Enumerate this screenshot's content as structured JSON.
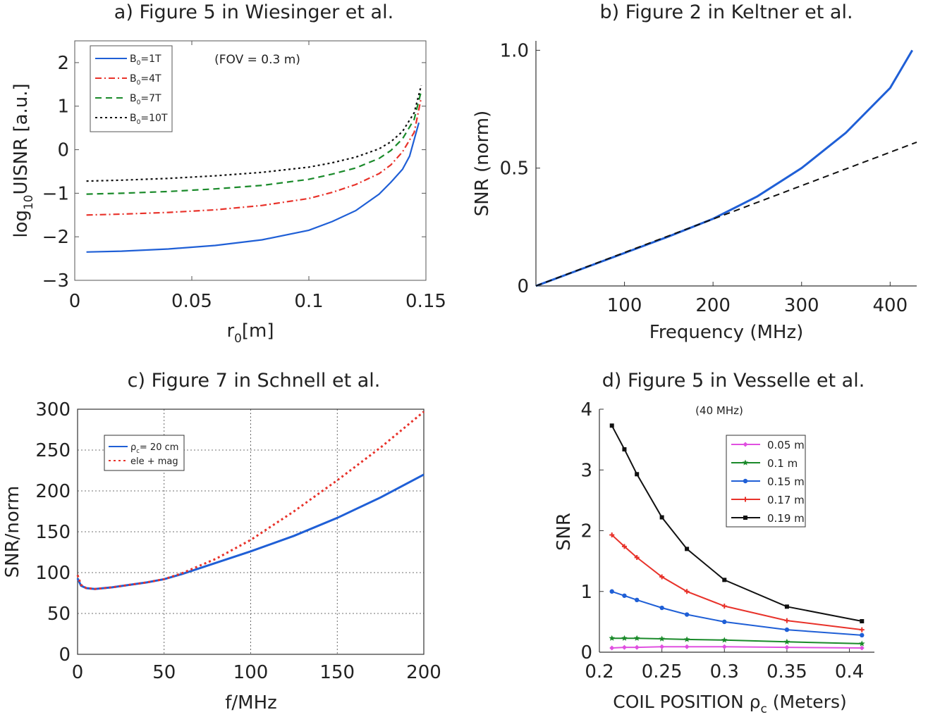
{
  "chart_data": [
    {
      "type": "line",
      "title": "a) Figure 5 in Wiesinger et al.",
      "xlabel": "r",
      "xlabel_sub": "0",
      "xlabel_suffix": "[m]",
      "ylabel": "log",
      "ylabel_sub": "10",
      "ylabel_suffix": "UISNR [a.u.]",
      "xlim": [
        0,
        0.15
      ],
      "ylim": [
        -3,
        2.5
      ],
      "xticks": [
        "0",
        "0.05",
        "0.1",
        "0.15"
      ],
      "xtick_values": [
        0,
        0.05,
        0.1,
        0.15
      ],
      "yticks": [
        "−3",
        "−2",
        "−1",
        "0",
        "1",
        "2"
      ],
      "ytick_values": [
        -3,
        -2,
        -1,
        0,
        1,
        2
      ],
      "annotation": "(FOV = 0.3 m)",
      "legend_position": "top-left",
      "series": [
        {
          "name": "B0=1T",
          "name_main": "B",
          "name_sub": "0",
          "name_suffix": "=1T",
          "color": "#1f5fd6",
          "dash": "solid",
          "x": [
            0.005,
            0.02,
            0.04,
            0.06,
            0.08,
            0.1,
            0.11,
            0.12,
            0.13,
            0.135,
            0.14,
            0.143,
            0.147
          ],
          "y": [
            -2.35,
            -2.33,
            -2.28,
            -2.2,
            -2.07,
            -1.85,
            -1.65,
            -1.4,
            -1.02,
            -0.75,
            -0.45,
            -0.15,
            0.62
          ]
        },
        {
          "name": "B0=4T",
          "name_main": "B",
          "name_sub": "0",
          "name_suffix": "=4T",
          "color": "#e8322a",
          "dash": "dashdot",
          "x": [
            0.005,
            0.02,
            0.04,
            0.06,
            0.08,
            0.1,
            0.11,
            0.12,
            0.13,
            0.135,
            0.14,
            0.145,
            0.148
          ],
          "y": [
            -1.5,
            -1.48,
            -1.44,
            -1.38,
            -1.28,
            -1.12,
            -0.98,
            -0.8,
            -0.55,
            -0.35,
            -0.05,
            0.4,
            1.2
          ]
        },
        {
          "name": "B0=7T",
          "name_main": "B",
          "name_sub": "0",
          "name_suffix": "=7T",
          "color": "#1a8a2a",
          "dash": "dash",
          "x": [
            0.005,
            0.02,
            0.04,
            0.06,
            0.08,
            0.1,
            0.11,
            0.12,
            0.13,
            0.135,
            0.14,
            0.145,
            0.148
          ],
          "y": [
            -1.02,
            -1.0,
            -0.96,
            -0.9,
            -0.82,
            -0.68,
            -0.56,
            -0.42,
            -0.2,
            -0.02,
            0.25,
            0.7,
            1.35
          ]
        },
        {
          "name": "B0=10T",
          "name_main": "B",
          "name_sub": "0",
          "name_suffix": "=10T",
          "color": "#111111",
          "dash": "dot",
          "x": [
            0.005,
            0.02,
            0.04,
            0.06,
            0.08,
            0.1,
            0.11,
            0.12,
            0.13,
            0.135,
            0.14,
            0.145,
            0.148
          ],
          "y": [
            -0.72,
            -0.7,
            -0.66,
            -0.6,
            -0.52,
            -0.4,
            -0.3,
            -0.17,
            0.02,
            0.18,
            0.42,
            0.85,
            1.48
          ]
        }
      ]
    },
    {
      "type": "line",
      "title": "b) Figure 2 in Keltner et al.",
      "xlabel": "Frequency (MHz)",
      "ylabel": "SNR (norm)",
      "xlim": [
        0,
        430
      ],
      "ylim": [
        0,
        1.04
      ],
      "xticks": [
        "100",
        "200",
        "300",
        "400"
      ],
      "xtick_values": [
        100,
        200,
        300,
        400
      ],
      "yticks": [
        "0",
        "0.5",
        "1.0"
      ],
      "ytick_values": [
        0,
        0.5,
        1.0
      ],
      "series": [
        {
          "color": "#1f5fd6",
          "dash": "solid",
          "x": [
            0,
            50,
            100,
            150,
            200,
            250,
            300,
            350,
            400,
            425
          ],
          "y": [
            0,
            0.07,
            0.14,
            0.21,
            0.285,
            0.38,
            0.5,
            0.65,
            0.84,
            1.0
          ]
        },
        {
          "color": "#111111",
          "dash": "dash",
          "x": [
            0,
            430
          ],
          "y": [
            0,
            0.61
          ]
        }
      ]
    },
    {
      "type": "line",
      "title": "c) Figure 7 in Schnell et al.",
      "xlabel": "f/MHz",
      "ylabel": "SNR/norm",
      "xlim": [
        0,
        200
      ],
      "ylim": [
        0,
        300
      ],
      "xticks": [
        "0",
        "50",
        "100",
        "150",
        "200"
      ],
      "xtick_values": [
        0,
        50,
        100,
        150,
        200
      ],
      "yticks": [
        "0",
        "50",
        "100",
        "150",
        "200",
        "250",
        "300"
      ],
      "ytick_values": [
        0,
        50,
        100,
        150,
        200,
        250,
        300
      ],
      "grid": true,
      "legend_position": "top-left",
      "series": [
        {
          "name": "ρc= 20 cm",
          "name_main": "ρ",
          "name_sub": "c",
          "name_suffix": "= 20 cm",
          "color": "#1f5fd6",
          "dash": "solid",
          "x": [
            0,
            2,
            5,
            10,
            20,
            30,
            40,
            50,
            60,
            80,
            100,
            125,
            150,
            175,
            200
          ],
          "y": [
            93,
            84,
            81,
            80,
            82,
            85,
            88,
            92,
            98,
            112,
            126,
            145,
            167,
            192,
            220
          ]
        },
        {
          "name": "ele + mag",
          "color": "#e8322a",
          "dash": "dot",
          "x": [
            0,
            2,
            5,
            10,
            20,
            30,
            40,
            50,
            60,
            80,
            100,
            125,
            150,
            175,
            200
          ],
          "y": [
            97,
            85,
            81,
            80,
            82,
            85,
            88,
            92,
            99,
            117,
            140,
            175,
            213,
            253,
            297
          ]
        }
      ]
    },
    {
      "type": "line",
      "title": "d) Figure 5 in Vesselle et al.",
      "xlabel": "COIL POSITION",
      "xlabel_rho": "ρ",
      "xlabel_sub": "c",
      "xlabel_suffix": "(Meters)",
      "ylabel": "SNR",
      "xlim": [
        0.2,
        0.42
      ],
      "ylim": [
        0,
        4
      ],
      "xticks": [
        "0.2",
        "0.25",
        "0.3",
        "0.35",
        "0.4"
      ],
      "xtick_values": [
        0.2,
        0.25,
        0.3,
        0.35,
        0.4
      ],
      "yticks": [
        "0",
        "1",
        "2",
        "3",
        "4"
      ],
      "ytick_values": [
        0,
        1,
        2,
        3,
        4
      ],
      "annotation": "(40 MHz)",
      "legend_position": "top-right",
      "x": [
        0.21,
        0.22,
        0.23,
        0.25,
        0.27,
        0.3,
        0.35,
        0.41
      ],
      "series": [
        {
          "name": "0.05 m",
          "color": "#e050e0",
          "marker": "diamond",
          "y": [
            0.07,
            0.08,
            0.08,
            0.09,
            0.09,
            0.09,
            0.08,
            0.07
          ]
        },
        {
          "name": "0.1 m",
          "color": "#1a8a2a",
          "marker": "star",
          "y": [
            0.23,
            0.23,
            0.23,
            0.22,
            0.21,
            0.2,
            0.17,
            0.14
          ]
        },
        {
          "name": "0.15 m",
          "color": "#1f5fd6",
          "marker": "dot",
          "y": [
            1.0,
            0.93,
            0.86,
            0.73,
            0.62,
            0.5,
            0.37,
            0.28
          ]
        },
        {
          "name": "0.17 m",
          "color": "#e8322a",
          "marker": "plus",
          "y": [
            1.93,
            1.74,
            1.56,
            1.24,
            1.0,
            0.76,
            0.52,
            0.37
          ]
        },
        {
          "name": "0.19 m",
          "color": "#111111",
          "marker": "square",
          "y": [
            3.73,
            3.34,
            2.93,
            2.22,
            1.7,
            1.19,
            0.75,
            0.51
          ]
        }
      ]
    }
  ]
}
